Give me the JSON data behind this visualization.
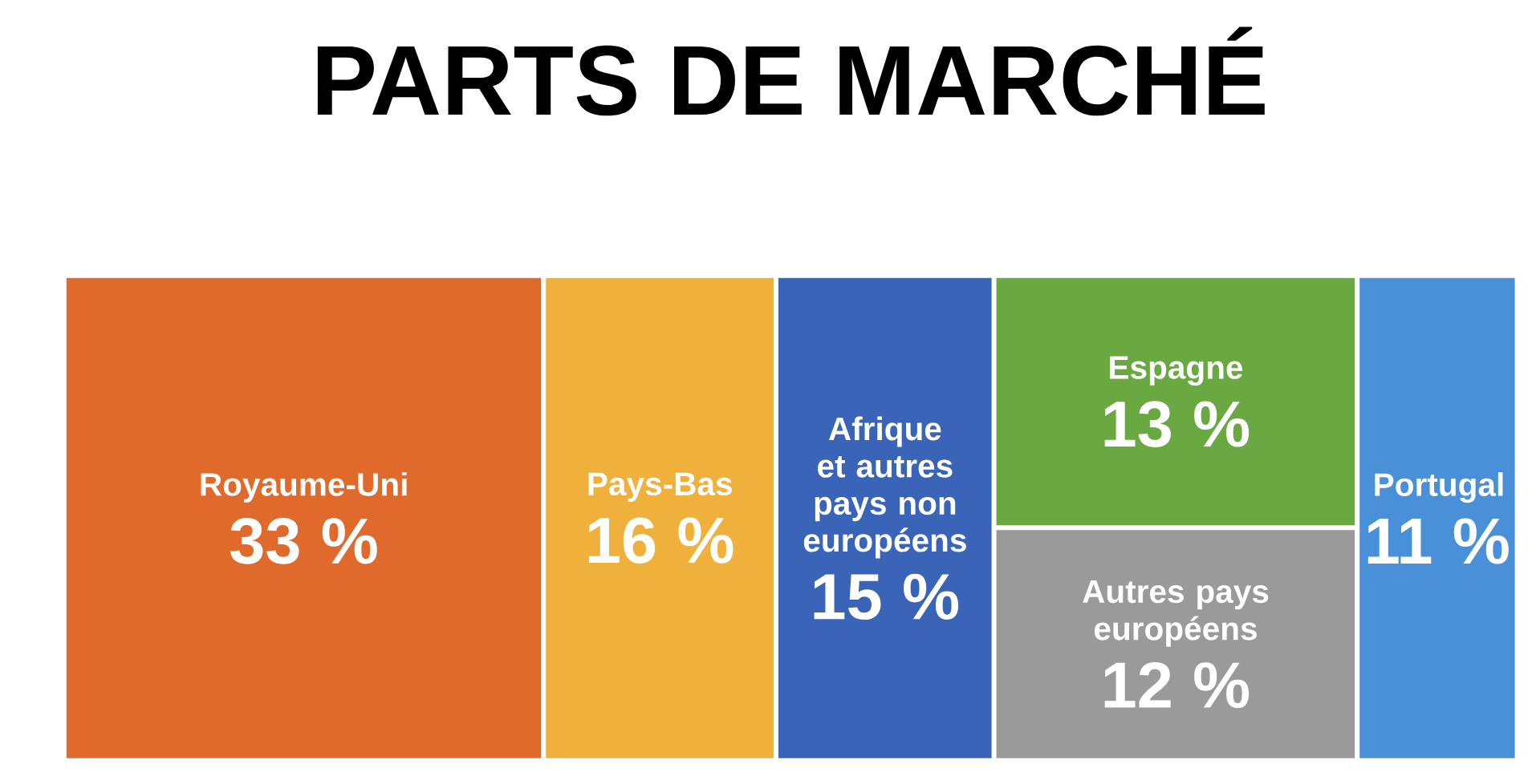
{
  "chart_data": {
    "type": "other",
    "title": "PARTS DE MARCHÉ",
    "categories": [
      "Royaume-Uni",
      "Pays-Bas",
      "Afrique et autres pays non européens",
      "Espagne",
      "Autres pays européens",
      "Portugal"
    ],
    "values": [
      33,
      16,
      15,
      13,
      12,
      11
    ],
    "value_labels": [
      "33 %",
      "16 %",
      "15 %",
      "13 %",
      "12 %",
      "11 %"
    ],
    "colors": [
      "#e06a2c",
      "#f0b03c",
      "#3a64b8",
      "#6aa842",
      "#9a9a9a",
      "#4a90d8"
    ]
  }
}
